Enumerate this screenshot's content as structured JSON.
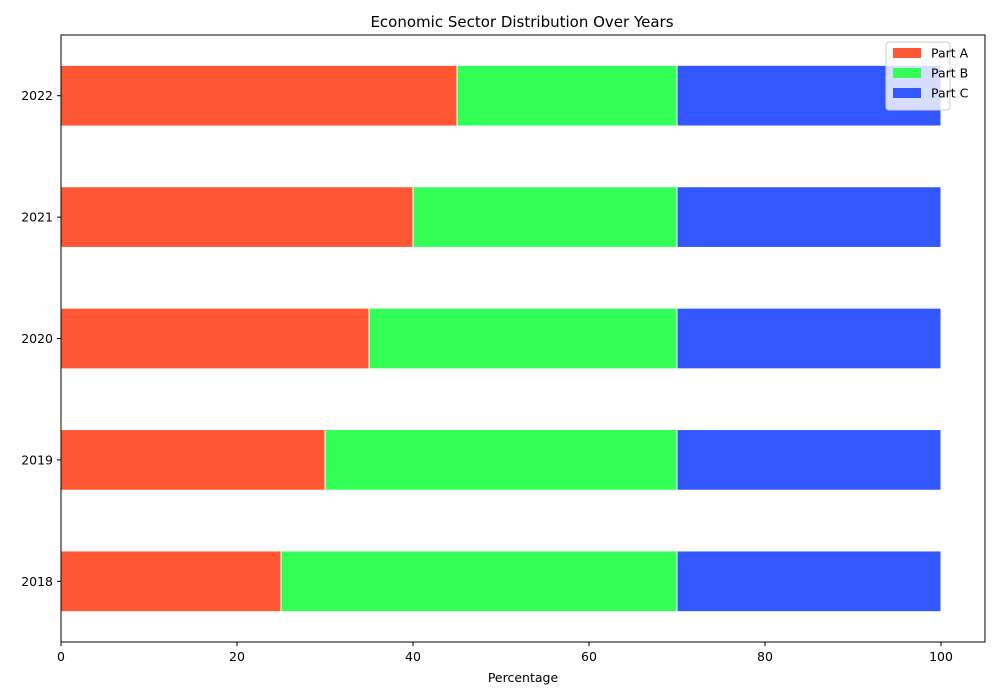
{
  "chart_data": {
    "type": "bar",
    "orientation": "horizontal",
    "stacked": true,
    "title": "Economic Sector Distribution Over Years",
    "xlabel": "Percentage",
    "ylabel": "",
    "categories": [
      "2018",
      "2019",
      "2020",
      "2021",
      "2022"
    ],
    "series": [
      {
        "name": "Part A",
        "color": "#FF5733",
        "values": [
          25,
          30,
          35,
          40,
          45
        ]
      },
      {
        "name": "Part B",
        "color": "#33FF57",
        "values": [
          45,
          40,
          35,
          30,
          25
        ]
      },
      {
        "name": "Part C",
        "color": "#3357FF",
        "values": [
          30,
          30,
          30,
          30,
          30
        ]
      }
    ],
    "xlim": [
      0,
      105
    ],
    "xticks": [
      0,
      20,
      40,
      60,
      80,
      100
    ],
    "grid": false,
    "legend_position": "top-right"
  }
}
